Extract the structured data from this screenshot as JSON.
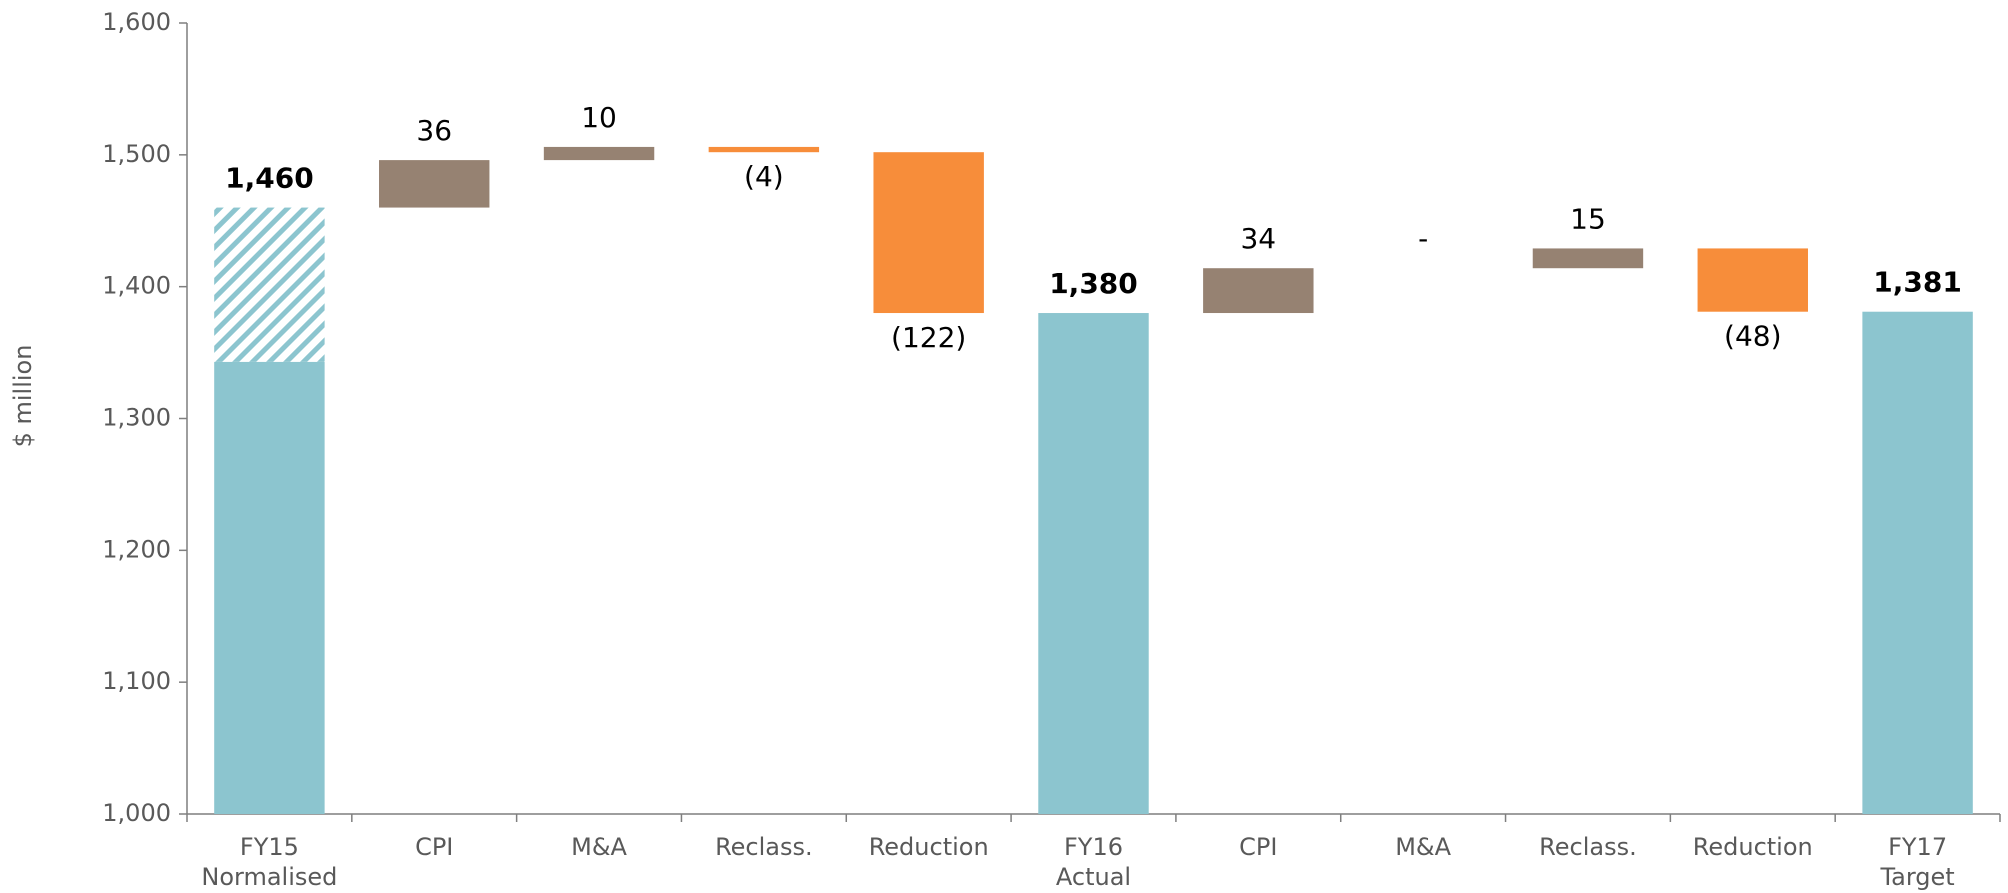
{
  "chart_data": {
    "type": "waterfall",
    "y_label": "$ million",
    "categories": [
      [
        "FY15",
        "Normalised"
      ],
      [
        "CPI"
      ],
      [
        "M&A"
      ],
      [
        "Reclass."
      ],
      [
        "Reduction"
      ],
      [
        "FY16",
        "Actual"
      ],
      [
        "CPI"
      ],
      [
        "M&A"
      ],
      [
        "Reclass."
      ],
      [
        "Reduction"
      ],
      [
        "FY17",
        "Target"
      ]
    ],
    "kinds": [
      "total",
      "delta",
      "delta",
      "delta",
      "delta",
      "total",
      "delta",
      "delta",
      "delta",
      "delta",
      "total"
    ],
    "values": [
      1460,
      36,
      10,
      -4,
      -122,
      1380,
      34,
      0,
      15,
      -48,
      1381
    ],
    "value_labels": [
      "1,460",
      "36",
      "10",
      "(4)",
      "(122)",
      "1,380",
      "34",
      "-",
      "15",
      "(48)",
      "1,381"
    ],
    "hatched_base": 1343,
    "colors": {
      "total": "#8cc5cf",
      "increase": "#968272",
      "decrease": "#f78d3a"
    },
    "ylim": [
      1000,
      1600
    ],
    "yticks": [
      {
        "value": 1000,
        "label": "1,000"
      },
      {
        "value": 1100,
        "label": "1,100"
      },
      {
        "value": 1200,
        "label": "1,200"
      },
      {
        "value": 1300,
        "label": "1,300"
      },
      {
        "value": 1400,
        "label": "1,400"
      },
      {
        "value": 1500,
        "label": "1,500"
      },
      {
        "value": 1600,
        "label": "1,600"
      }
    ]
  }
}
